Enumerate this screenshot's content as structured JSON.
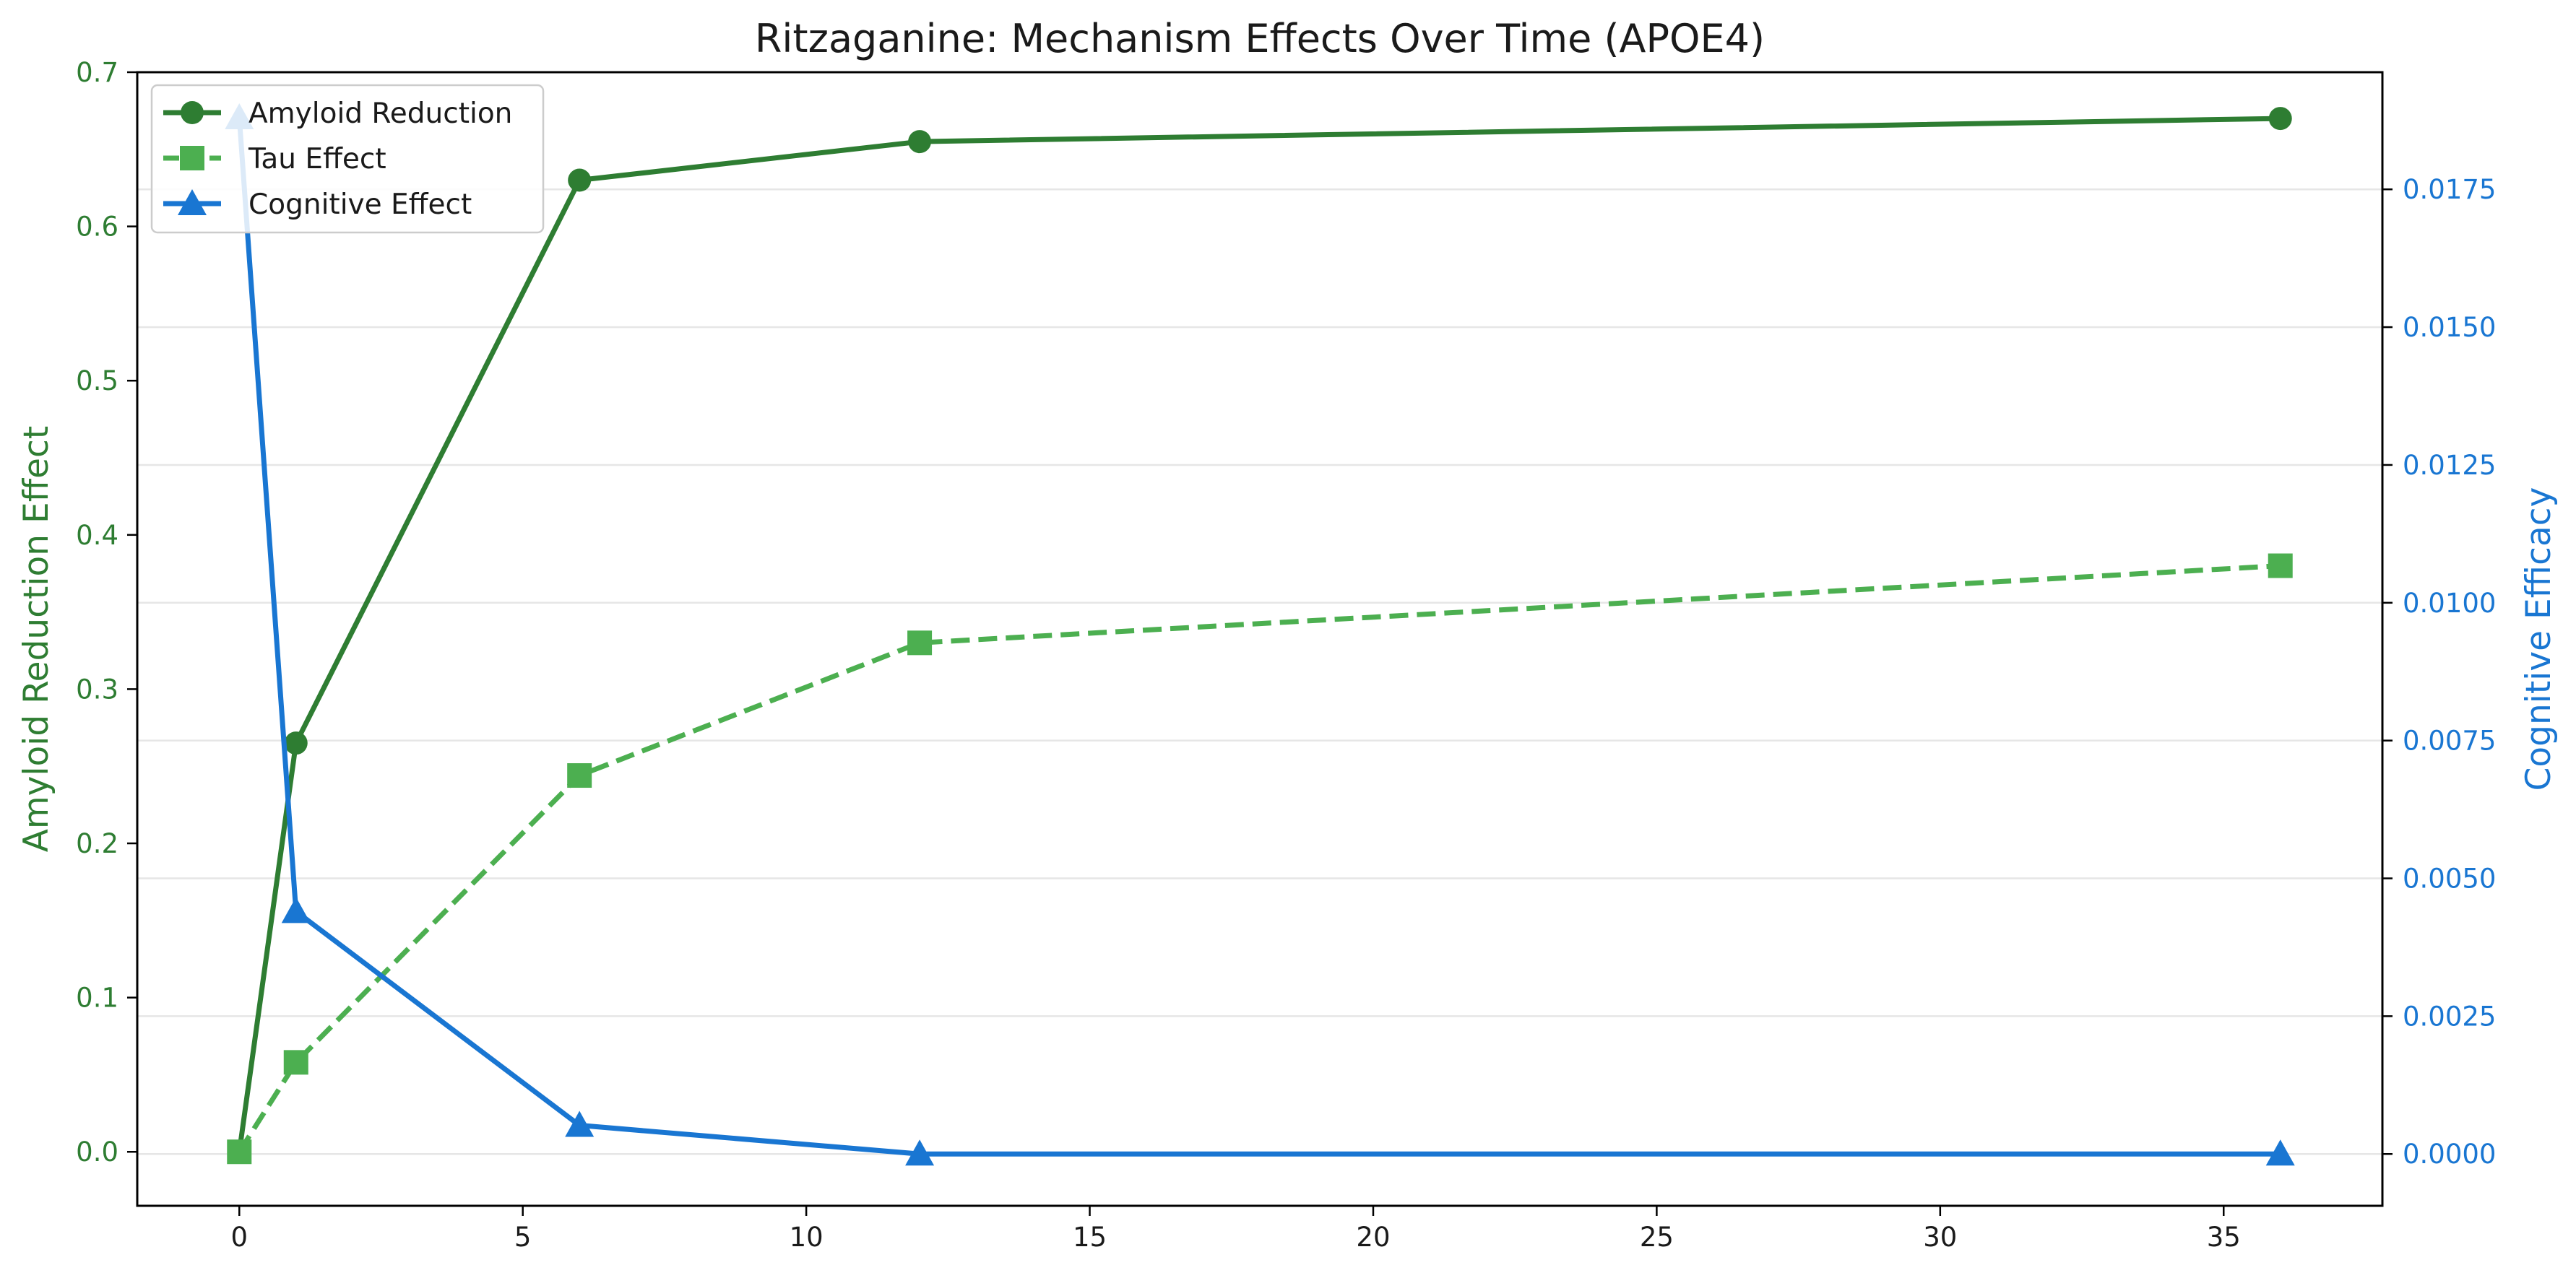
{
  "colors": {
    "amyloid": "#2e7d32",
    "tau": "#4caf50",
    "cognitive": "#1976d2",
    "grid": "#e6e6e6",
    "axis": "#000000"
  },
  "chart_data": {
    "type": "line",
    "title": "Ritzaganine: Mechanism Effects Over Time (APOE4)",
    "xlabel": "",
    "ylabel_left": "Amyloid Reduction Effect",
    "ylabel_right": "Cognitive Efficacy",
    "xlim": [
      -1.8,
      37.8
    ],
    "ylim_left": [
      -0.035,
      0.7
    ],
    "ylim_right": [
      -0.00094,
      0.019625
    ],
    "xticks": [
      0,
      5,
      10,
      15,
      20,
      25,
      30,
      35
    ],
    "xtick_labels": [
      "0",
      "5",
      "10",
      "15",
      "20",
      "25",
      "30",
      "35"
    ],
    "yticks_left": [
      0.0,
      0.1,
      0.2,
      0.3,
      0.4,
      0.5,
      0.6,
      0.7
    ],
    "ytick_labels_left": [
      "0.0",
      "0.1",
      "0.2",
      "0.3",
      "0.4",
      "0.5",
      "0.6",
      "0.7"
    ],
    "yticks_right": [
      0.0,
      0.0025,
      0.005,
      0.0075,
      0.01,
      0.0125,
      0.015,
      0.0175
    ],
    "ytick_labels_right": [
      "0.0000",
      "0.0025",
      "0.0050",
      "0.0075",
      "0.0100",
      "0.0125",
      "0.0150",
      "0.0175"
    ],
    "grid": "horizontal-right-axis",
    "legend_position": "top-left",
    "x": [
      0,
      1,
      6,
      12,
      36
    ],
    "series": [
      {
        "name": "Amyloid Reduction",
        "axis": "left",
        "marker": "circle",
        "style": "solid",
        "color": "#2e7d32",
        "values": [
          0.0,
          0.265,
          0.63,
          0.655,
          0.67
        ]
      },
      {
        "name": "Tau Effect",
        "axis": "left",
        "marker": "square",
        "style": "dashed",
        "color": "#4caf50",
        "values": [
          0.0,
          0.058,
          0.244,
          0.33,
          0.38
        ]
      },
      {
        "name": "Cognitive Effect",
        "axis": "right",
        "marker": "triangle",
        "style": "solid",
        "color": "#1976d2",
        "values": [
          0.0188,
          0.0044,
          0.00052,
          0.0,
          0.0
        ]
      }
    ]
  }
}
